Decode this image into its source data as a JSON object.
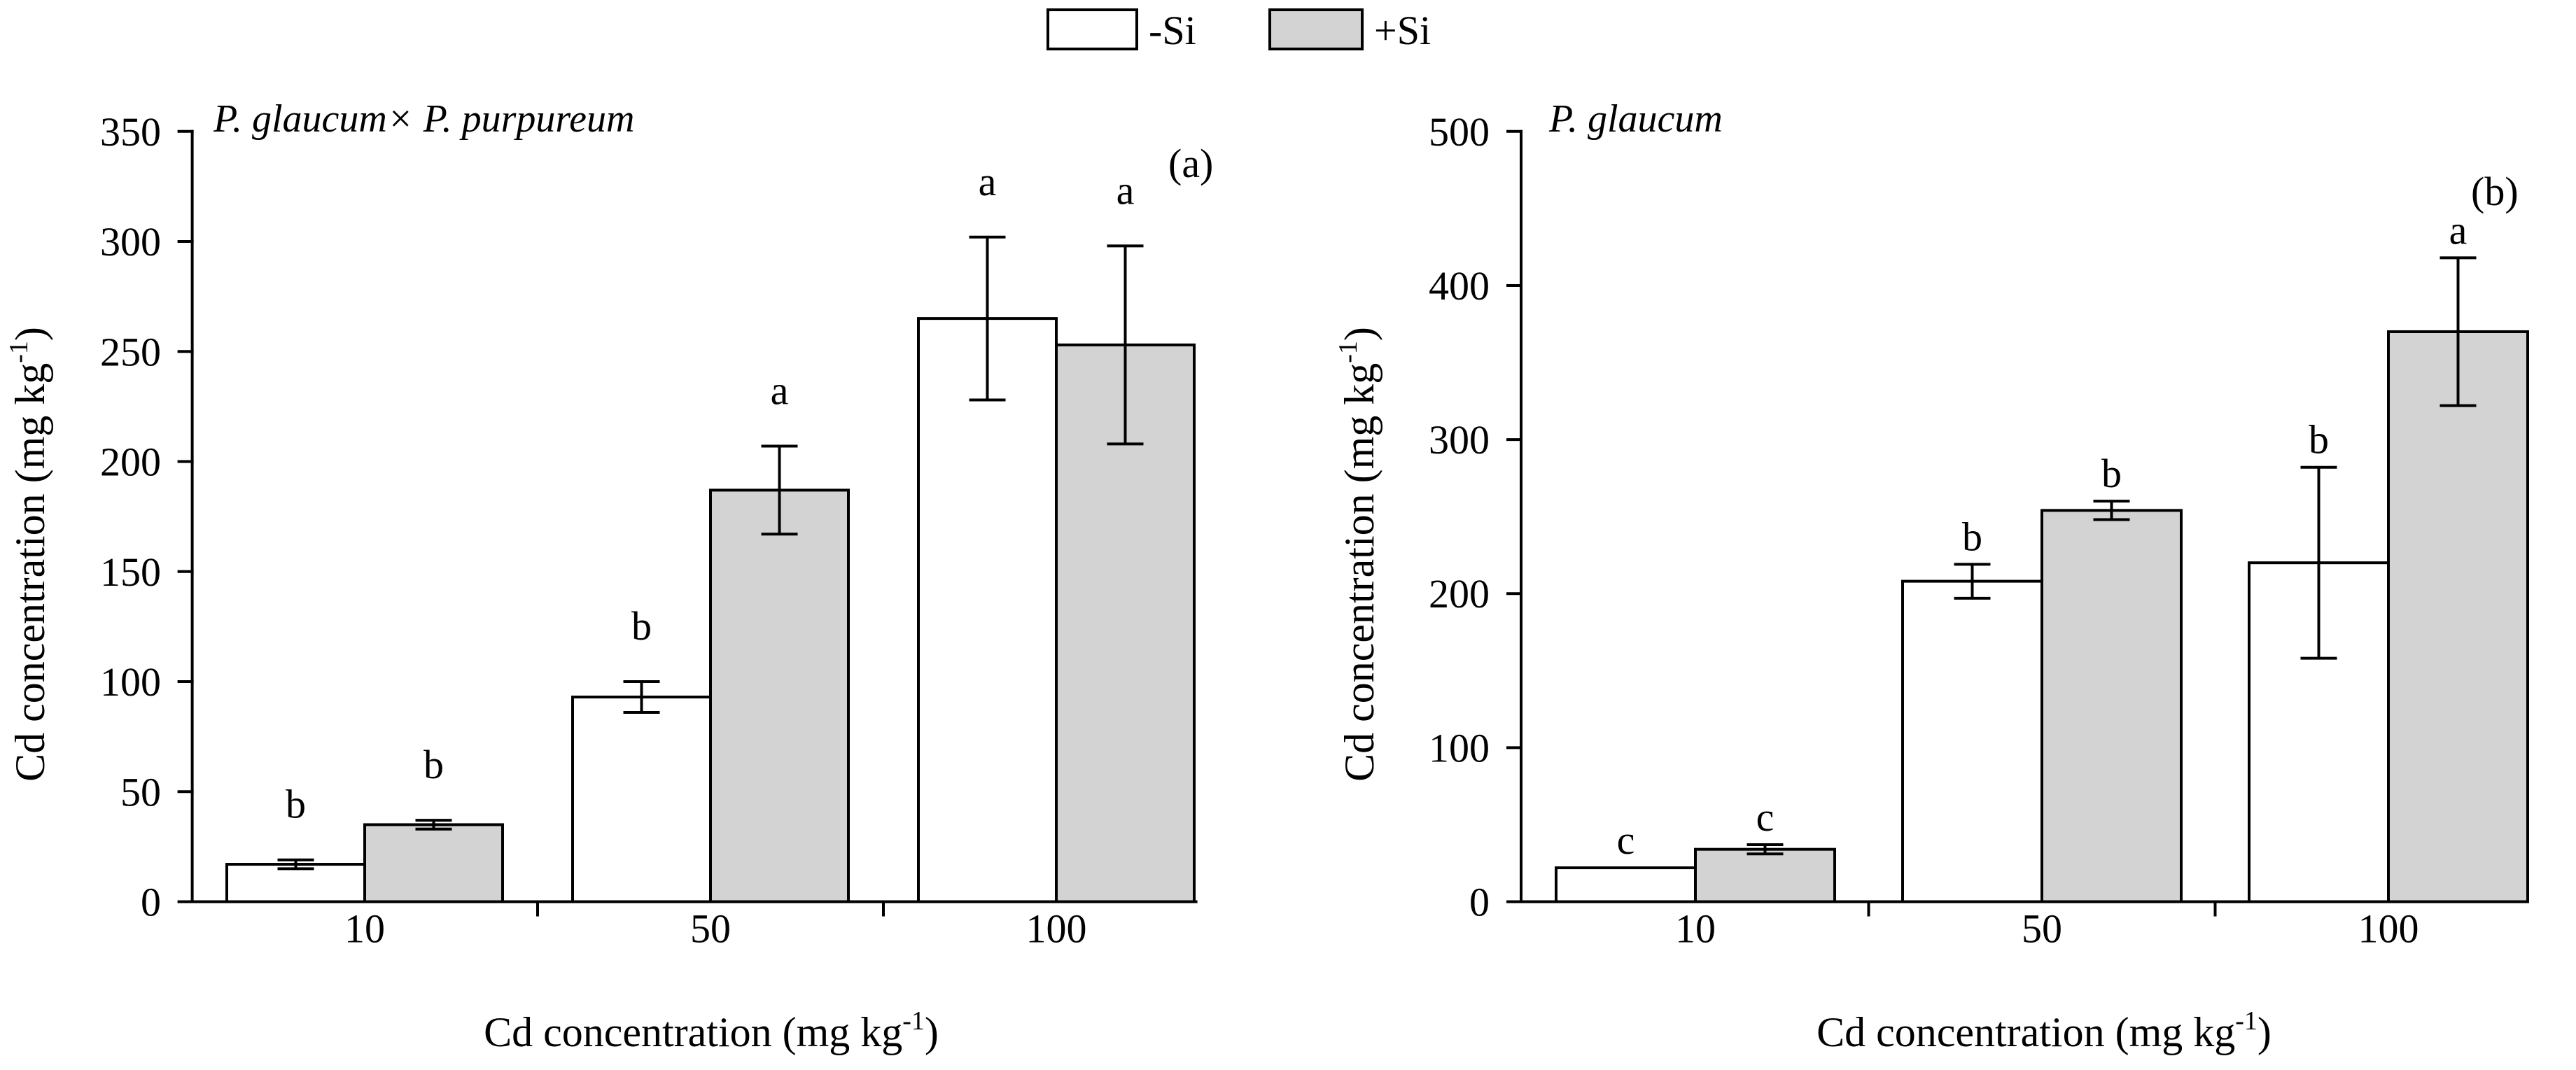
{
  "chart_data": [
    {
      "type": "bar",
      "title": "P. glaucum× P. purpureum",
      "panel": "(a)",
      "categories": [
        "10",
        "50",
        "100"
      ],
      "series": [
        {
          "name": "-Si",
          "color": "#ffffff",
          "values": [
            17,
            93,
            265
          ],
          "errors": [
            2,
            7,
            37
          ],
          "letters": [
            "b",
            "b",
            "a"
          ]
        },
        {
          "name": "+Si",
          "color": "#d3d3d3",
          "values": [
            35,
            187,
            253
          ],
          "errors": [
            2,
            20,
            45
          ],
          "letters": [
            "b",
            "a",
            "a"
          ]
        }
      ],
      "ylim": [
        0,
        350
      ],
      "yticks": [
        0,
        50,
        100,
        150,
        200,
        250,
        300,
        350
      ],
      "ylabel": {
        "text": "Cd concentration (mg kg",
        "sup": "-1",
        "close": ")"
      },
      "xlabel": {
        "text": "Cd concentration (mg kg",
        "sup": "-1",
        "close": ")"
      }
    },
    {
      "type": "bar",
      "title": "P. glaucum",
      "panel": "(b)",
      "categories": [
        "10",
        "50",
        "100"
      ],
      "series": [
        {
          "name": "-Si",
          "color": "#ffffff",
          "values": [
            22,
            208,
            220
          ],
          "errors": [
            0,
            11,
            62
          ],
          "letters": [
            "c",
            "b",
            "b"
          ]
        },
        {
          "name": "+Si",
          "color": "#d3d3d3",
          "values": [
            34,
            254,
            370
          ],
          "errors": [
            3,
            6,
            48
          ],
          "letters": [
            "c",
            "b",
            "a"
          ]
        }
      ],
      "ylim": [
        0,
        500
      ],
      "yticks": [
        0,
        100,
        200,
        300,
        400,
        500
      ],
      "ylabel": {
        "text": "Cd concentration (mg kg",
        "sup": "-1",
        "close": ")"
      },
      "xlabel": {
        "text": "Cd concentration (mg kg",
        "sup": "-1",
        "close": ")"
      }
    }
  ]
}
